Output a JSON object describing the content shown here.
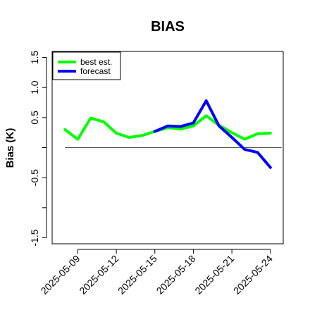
{
  "chart_data": {
    "type": "line",
    "title": "BIAS",
    "xlabel": "",
    "ylabel": "Bias (K)",
    "ylim": [
      -1.6,
      1.6
    ],
    "yticks": [
      -1.5,
      -1.0,
      -0.5,
      0.0,
      0.5,
      1.0,
      1.5
    ],
    "ytick_labels": [
      "-1.5",
      "",
      "-0.5",
      "",
      "0.5",
      "1.0",
      "1.5"
    ],
    "x": [
      "2025-05-08",
      "2025-05-09",
      "2025-05-10",
      "2025-05-11",
      "2025-05-12",
      "2025-05-13",
      "2025-05-14",
      "2025-05-15",
      "2025-05-16",
      "2025-05-17",
      "2025-05-18",
      "2025-05-19",
      "2025-05-20",
      "2025-05-21",
      "2025-05-22",
      "2025-05-23",
      "2025-05-24"
    ],
    "xlim": [
      "2025-05-07",
      "2025-05-25"
    ],
    "xticks": [
      "2025-05-09",
      "2025-05-12",
      "2025-05-15",
      "2025-05-18",
      "2025-05-21",
      "2025-05-24"
    ],
    "highlight_tick": "2025-05-15",
    "highlight_color": "#228B22",
    "reference_line": 0,
    "series": [
      {
        "name": "best est.",
        "color": "#00ff00",
        "values": [
          0.3,
          0.14,
          0.49,
          0.43,
          0.24,
          0.17,
          0.2,
          0.27,
          0.33,
          0.31,
          0.36,
          0.53,
          0.37,
          0.25,
          0.14,
          0.23,
          0.24
        ]
      },
      {
        "name": "forecast",
        "color": "#0000ff",
        "values": [
          null,
          null,
          null,
          null,
          null,
          null,
          null,
          0.27,
          0.36,
          0.35,
          0.41,
          0.78,
          0.36,
          0.17,
          -0.03,
          -0.08,
          -0.33
        ]
      }
    ],
    "legend_position": "top-left",
    "grid": false
  }
}
